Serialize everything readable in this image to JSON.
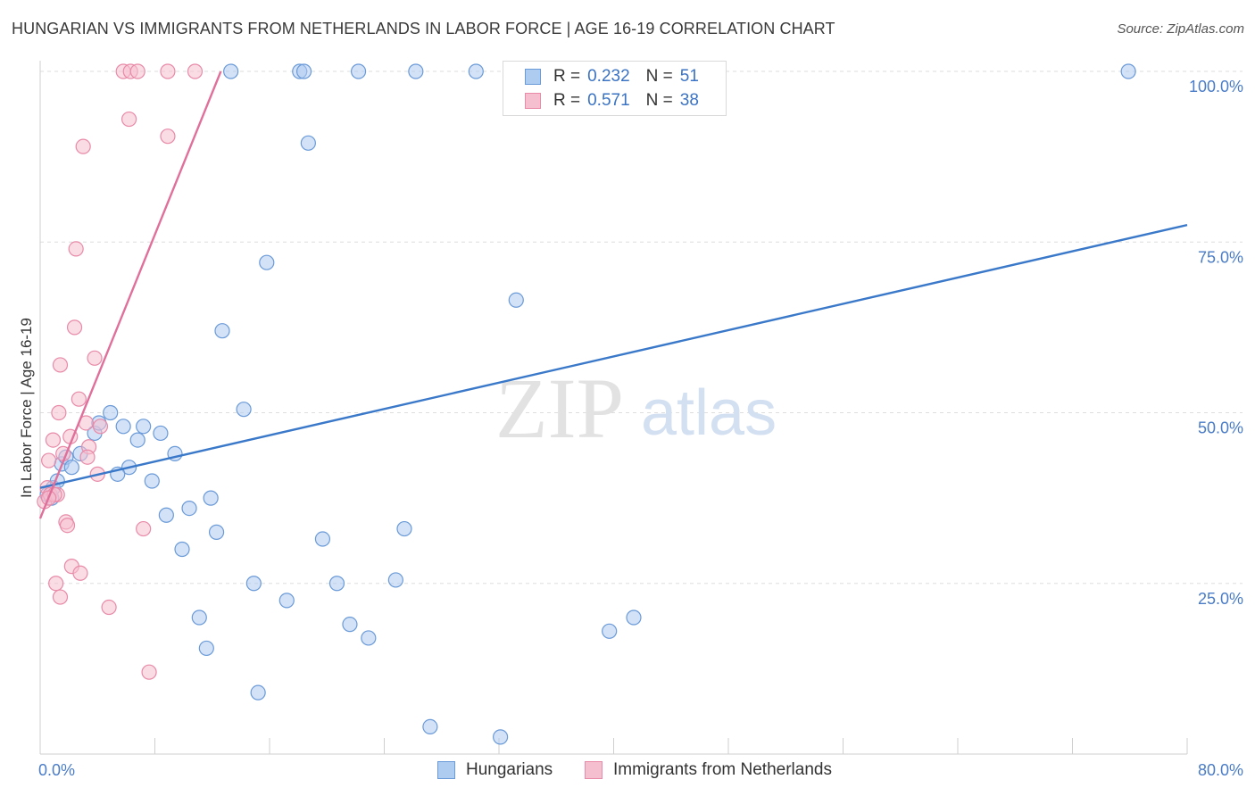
{
  "header": {
    "title": "HUNGARIAN VS IMMIGRANTS FROM NETHERLANDS IN LABOR FORCE | AGE 16-19 CORRELATION CHART",
    "source": "Source: ZipAtlas.com"
  },
  "watermark": {
    "zip": "ZIP",
    "atlas": "atlas"
  },
  "legend": {
    "rows": [
      {
        "r_label": "R =",
        "r_value": "0.232",
        "n_label": "N =",
        "n_value": "51"
      },
      {
        "r_label": "R =",
        "r_value": "0.571",
        "n_label": "N =",
        "n_value": "38"
      }
    ]
  },
  "colors": {
    "hungarians_fill": "#aecbf0",
    "hungarians_stroke": "#6a9ad8",
    "hungarians_line": "#3a78c9",
    "netherlands_fill": "#f6bfd0",
    "netherlands_stroke": "#e88aa8",
    "netherlands_line": "#e0709a",
    "grid": "#dddddd",
    "axis_label": "#4a7cc7"
  },
  "chart_data": {
    "type": "scatter",
    "title": "HUNGARIAN VS IMMIGRANTS FROM NETHERLANDS IN LABOR FORCE | AGE 16-19 CORRELATION CHART",
    "xlabel": "",
    "ylabel": "In Labor Force | Age 16-19",
    "xlim": [
      0,
      80
    ],
    "ylim": [
      0,
      102
    ],
    "x_tick_labels": [
      "0.0%",
      "80.0%"
    ],
    "y_ticks": [
      25,
      50,
      75,
      100
    ],
    "y_tick_labels": [
      "25.0%",
      "50.0%",
      "75.0%",
      "100.0%"
    ],
    "grid": true,
    "legend_position": "top-center",
    "series": [
      {
        "name": "Hungarians",
        "points": [
          [
            0.5,
            38
          ],
          [
            0.8,
            37.5
          ],
          [
            0.9,
            39
          ],
          [
            1.2,
            40
          ],
          [
            1.5,
            42.5
          ],
          [
            1.8,
            43.5
          ],
          [
            2.2,
            42
          ],
          [
            2.8,
            44
          ],
          [
            3.8,
            47
          ],
          [
            4.1,
            48.5
          ],
          [
            4.9,
            50
          ],
          [
            5.8,
            48
          ],
          [
            6.2,
            42
          ],
          [
            5.4,
            41
          ],
          [
            6.8,
            46
          ],
          [
            7.2,
            48
          ],
          [
            7.8,
            40
          ],
          [
            8.4,
            47
          ],
          [
            8.8,
            35
          ],
          [
            9.4,
            44
          ],
          [
            9.9,
            30
          ],
          [
            10.4,
            36
          ],
          [
            11.1,
            20
          ],
          [
            11.9,
            37.5
          ],
          [
            11.6,
            15.5
          ],
          [
            12.3,
            32.5
          ],
          [
            12.7,
            62
          ],
          [
            13.3,
            100
          ],
          [
            14.2,
            50.5
          ],
          [
            14.9,
            25
          ],
          [
            15.2,
            9
          ],
          [
            15.8,
            72
          ],
          [
            17.2,
            22.5
          ],
          [
            18.1,
            100
          ],
          [
            18.4,
            100
          ],
          [
            18.7,
            89.5
          ],
          [
            19.7,
            31.5
          ],
          [
            20.7,
            25
          ],
          [
            21.6,
            19
          ],
          [
            22.2,
            100
          ],
          [
            22.9,
            17
          ],
          [
            24.8,
            25.5
          ],
          [
            25.4,
            33
          ],
          [
            26.2,
            100
          ],
          [
            27.2,
            4
          ],
          [
            30.4,
            100
          ],
          [
            32.1,
            2.5
          ],
          [
            33.2,
            66.5
          ],
          [
            39.7,
            18
          ],
          [
            41.4,
            20
          ],
          [
            75.9,
            100
          ]
        ]
      },
      {
        "name": "Immigrants from Netherlands",
        "points": [
          [
            0.3,
            37
          ],
          [
            0.5,
            39
          ],
          [
            0.6,
            43
          ],
          [
            0.7,
            38
          ],
          [
            0.9,
            46
          ],
          [
            1.1,
            25
          ],
          [
            1.2,
            38
          ],
          [
            1.4,
            23
          ],
          [
            1.4,
            57
          ],
          [
            1.3,
            50
          ],
          [
            1.8,
            34
          ],
          [
            1.9,
            33.5
          ],
          [
            2.1,
            46.5
          ],
          [
            2.2,
            27.5
          ],
          [
            2.4,
            62.5
          ],
          [
            2.5,
            74
          ],
          [
            2.7,
            52
          ],
          [
            2.8,
            26.5
          ],
          [
            3.0,
            89
          ],
          [
            3.2,
            48.5
          ],
          [
            3.4,
            45
          ],
          [
            3.3,
            43.5
          ],
          [
            3.8,
            58
          ],
          [
            4.0,
            41
          ],
          [
            4.2,
            48
          ],
          [
            4.8,
            21.5
          ],
          [
            5.8,
            100
          ],
          [
            6.3,
            100
          ],
          [
            6.2,
            93
          ],
          [
            6.8,
            100
          ],
          [
            7.2,
            33
          ],
          [
            7.6,
            12
          ],
          [
            8.9,
            100
          ],
          [
            8.9,
            90.5
          ],
          [
            10.8,
            100
          ],
          [
            1.0,
            38
          ],
          [
            0.6,
            37.5
          ],
          [
            1.6,
            44
          ]
        ]
      }
    ],
    "trend_lines": [
      {
        "series": "Hungarians",
        "from": [
          0,
          39
        ],
        "to": [
          80,
          77.5
        ]
      },
      {
        "series": "Immigrants from Netherlands",
        "from": [
          0,
          34.5
        ],
        "to": [
          12.6,
          100
        ]
      }
    ]
  }
}
